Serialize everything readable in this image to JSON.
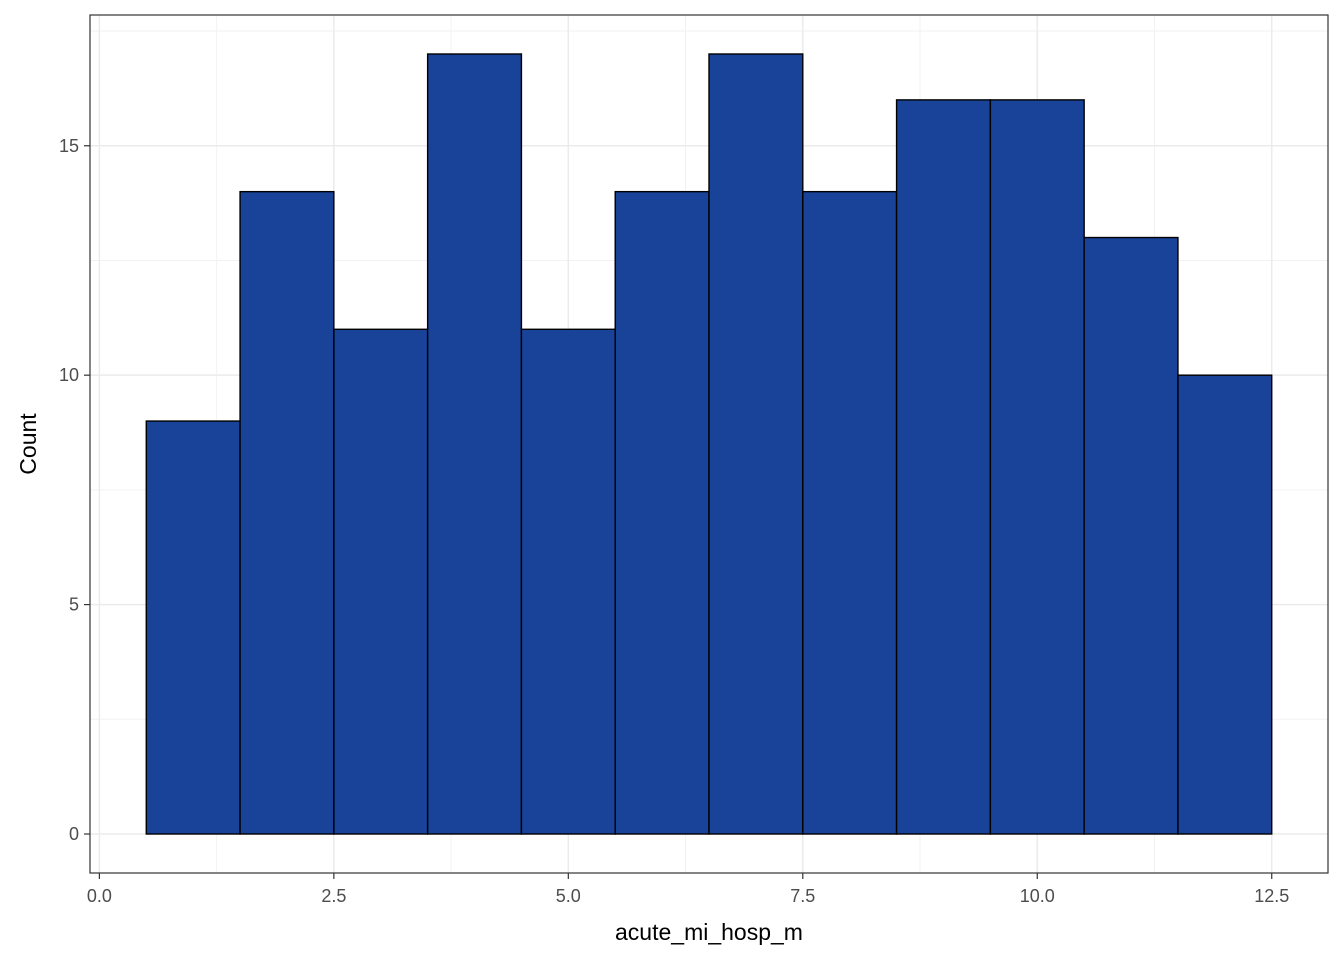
{
  "chart_data": {
    "type": "bar",
    "bins": [
      {
        "x0": 0.5,
        "x1": 1.5,
        "count": 9
      },
      {
        "x0": 1.5,
        "x1": 2.5,
        "count": 14
      },
      {
        "x0": 2.5,
        "x1": 3.5,
        "count": 11
      },
      {
        "x0": 3.5,
        "x1": 4.5,
        "count": 17
      },
      {
        "x0": 4.5,
        "x1": 5.5,
        "count": 11
      },
      {
        "x0": 5.5,
        "x1": 6.5,
        "count": 14
      },
      {
        "x0": 6.5,
        "x1": 7.5,
        "count": 17
      },
      {
        "x0": 7.5,
        "x1": 8.5,
        "count": 14
      },
      {
        "x0": 8.5,
        "x1": 9.5,
        "count": 16
      },
      {
        "x0": 9.5,
        "x1": 10.5,
        "count": 16
      },
      {
        "x0": 10.5,
        "x1": 11.5,
        "count": 13
      },
      {
        "x0": 11.5,
        "x1": 12.5,
        "count": 10
      }
    ],
    "xlabel": "acute_mi_hosp_m",
    "ylabel": "Count",
    "xlim": [
      -0.1,
      13.1
    ],
    "ylim": [
      -0.85,
      17.85
    ],
    "x_ticks": [
      0.0,
      2.5,
      5.0,
      7.5,
      10.0,
      12.5
    ],
    "x_tick_labels": [
      "0.0",
      "2.5",
      "5.0",
      "7.5",
      "10.0",
      "12.5"
    ],
    "y_ticks": [
      0,
      5,
      10,
      15
    ],
    "y_tick_labels": [
      "0",
      "5",
      "10",
      "15"
    ],
    "grid": true,
    "bar_fill": "#184399",
    "bar_outline": "#000000"
  }
}
